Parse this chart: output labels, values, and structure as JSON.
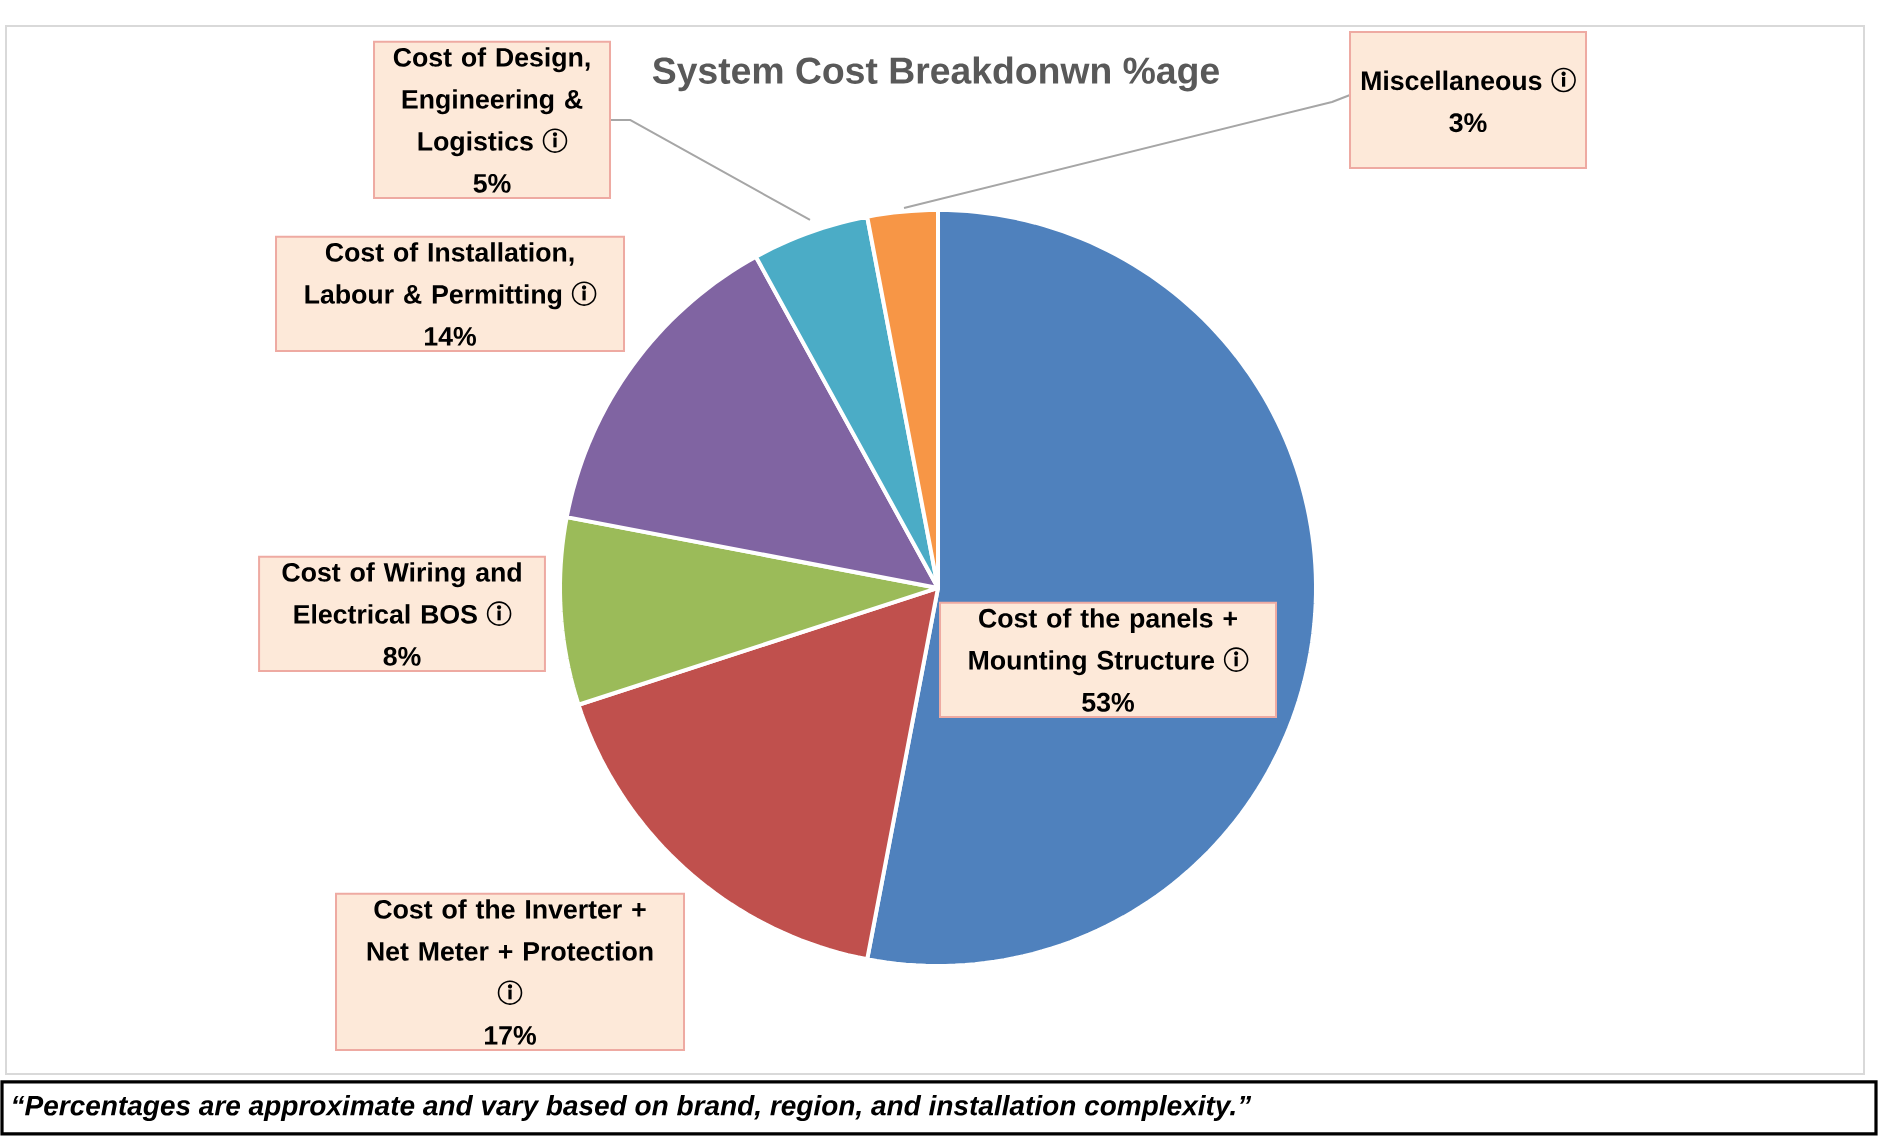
{
  "chart_data": {
    "type": "pie",
    "title": "System Cost Breakdonwn %age",
    "categories": [
      "Cost of the panels + Mounting Structure",
      "Cost of the Inverter + Net Meter + Protection",
      "Cost of Wiring and Electrical BOS",
      "Cost of Installation, Labour & Permitting",
      "Cost of Design, Engineering & Logistics",
      "Miscellaneous"
    ],
    "values": [
      53,
      17,
      8,
      14,
      5,
      3
    ],
    "colors": [
      "#4f81bd",
      "#c0504d",
      "#9bbb59",
      "#8064a2",
      "#4bacc6",
      "#f79646"
    ],
    "value_labels": [
      "53%",
      "17%",
      "8%",
      "14%",
      "5%",
      "3%"
    ],
    "annotations": [
      "“Percentages are approximate and vary based on brand, region, and installation complexity.”"
    ]
  }
}
